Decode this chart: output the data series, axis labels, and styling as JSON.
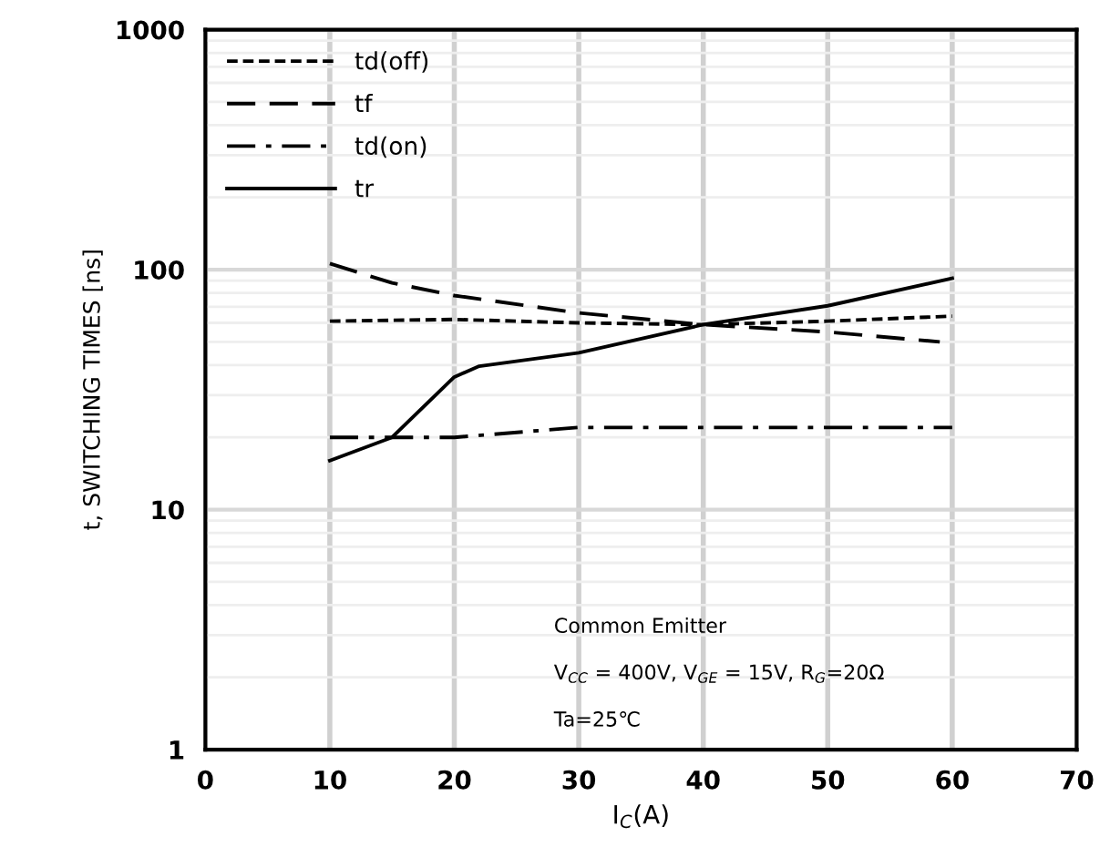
{
  "chart_data": {
    "type": "line",
    "xlabel": "I$_{C}$(A)",
    "ylabel": "t, SWITCHING TIMES [ns]",
    "log": "y",
    "xlim": [
      0,
      70
    ],
    "xticks": [
      0,
      10,
      20,
      30,
      40,
      50,
      60,
      70
    ],
    "ylim": [
      1,
      1000
    ],
    "yticks": [
      1,
      10,
      100,
      1000
    ],
    "grid": true,
    "legend": "top left",
    "marker": "none",
    "series": [
      {
        "name": "td(off)",
        "color": "#000000",
        "line_style": "dashed",
        "x": [
          10,
          20,
          30,
          40,
          50,
          60
        ],
        "values": [
          61,
          62,
          60,
          59,
          61,
          64
        ]
      },
      {
        "name": "tf",
        "color": "#000000",
        "line_style": "longdash",
        "x": [
          10,
          15,
          20,
          30,
          40,
          50,
          59
        ],
        "values": [
          106,
          88,
          78,
          66,
          59,
          55,
          50
        ]
      },
      {
        "name": "td(on)",
        "color": "#000000",
        "line_style": "dashdot",
        "x": [
          10,
          20,
          30,
          40,
          50,
          60
        ],
        "values": [
          20,
          20,
          22,
          22,
          22,
          22
        ]
      },
      {
        "name": "tr",
        "color": "#000000",
        "line_style": "solid",
        "x": [
          10,
          15,
          20,
          22,
          30,
          40,
          50,
          60
        ],
        "values": [
          16,
          20,
          35.7,
          39.6,
          45,
          59,
          70.7,
          92
        ]
      }
    ],
    "annotations": [
      "Common Emitter",
      "V$_{CC}$ = 400V, V$_{GE}$ = 15V, R$_{G}$=20Ω",
      "Ta=25℃"
    ]
  }
}
